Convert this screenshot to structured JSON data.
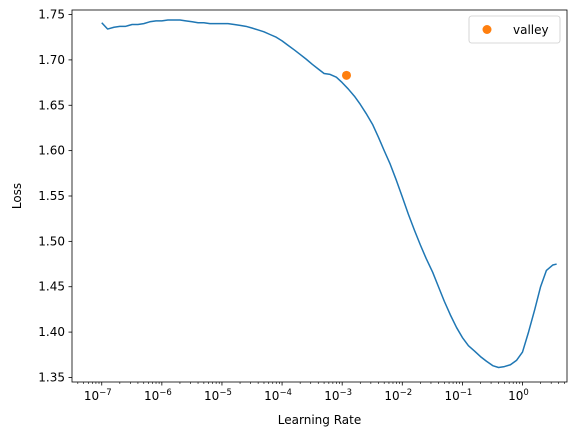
{
  "chart_data": {
    "type": "line",
    "title": "",
    "xlabel": "Learning Rate",
    "ylabel": "Loss",
    "xscale": "log",
    "xlim": [
      3.2e-08,
      5.5
    ],
    "ylim": [
      1.345,
      1.755
    ],
    "x_ticks": [
      {
        "value": 1e-07,
        "base": "10",
        "exp": "−7"
      },
      {
        "value": 1e-06,
        "base": "10",
        "exp": "−6"
      },
      {
        "value": 1e-05,
        "base": "10",
        "exp": "−5"
      },
      {
        "value": 0.0001,
        "base": "10",
        "exp": "−4"
      },
      {
        "value": 0.001,
        "base": "10",
        "exp": "−3"
      },
      {
        "value": 0.01,
        "base": "10",
        "exp": "−2"
      },
      {
        "value": 0.1,
        "base": "10",
        "exp": "−1"
      },
      {
        "value": 1,
        "base": "10",
        "exp": "0"
      }
    ],
    "y_ticks": [
      {
        "value": 1.35,
        "label": "1.35"
      },
      {
        "value": 1.4,
        "label": "1.40"
      },
      {
        "value": 1.45,
        "label": "1.45"
      },
      {
        "value": 1.5,
        "label": "1.50"
      },
      {
        "value": 1.55,
        "label": "1.55"
      },
      {
        "value": 1.6,
        "label": "1.60"
      },
      {
        "value": 1.65,
        "label": "1.65"
      },
      {
        "value": 1.7,
        "label": "1.70"
      },
      {
        "value": 1.75,
        "label": "1.75"
      }
    ],
    "grid": false,
    "legend": {
      "placement": "top-right"
    },
    "series": [
      {
        "kind": "line",
        "color": "#1f77b4",
        "x": [
          1e-07,
          1.25e-07,
          1.6e-07,
          2e-07,
          2.5e-07,
          3.2e-07,
          4e-07,
          5e-07,
          6.3e-07,
          8e-07,
          1e-06,
          1.26e-06,
          1.6e-06,
          2e-06,
          2.5e-06,
          3.2e-06,
          4e-06,
          5e-06,
          6.3e-06,
          8e-06,
          1e-05,
          1.26e-05,
          1.6e-05,
          2e-05,
          2.5e-05,
          3.2e-05,
          4e-05,
          5e-05,
          6.3e-05,
          8e-05,
          0.0001,
          0.000126,
          0.00016,
          0.0002,
          0.00025,
          0.00032,
          0.0004,
          0.0005,
          0.00063,
          0.0008,
          0.001,
          0.00126,
          0.0016,
          0.002,
          0.0025,
          0.0032,
          0.004,
          0.005,
          0.0063,
          0.008,
          0.01,
          0.0126,
          0.016,
          0.02,
          0.025,
          0.032,
          0.04,
          0.05,
          0.063,
          0.08,
          0.1,
          0.126,
          0.16,
          0.2,
          0.25,
          0.32,
          0.4,
          0.5,
          0.63,
          0.8,
          1.0,
          1.26,
          1.6,
          2.0,
          2.5,
          3.2,
          3.7
        ],
        "y": [
          1.741,
          1.734,
          1.736,
          1.737,
          1.737,
          1.739,
          1.739,
          1.74,
          1.742,
          1.743,
          1.743,
          1.744,
          1.744,
          1.744,
          1.743,
          1.742,
          1.741,
          1.741,
          1.74,
          1.74,
          1.74,
          1.74,
          1.739,
          1.738,
          1.737,
          1.735,
          1.733,
          1.731,
          1.728,
          1.725,
          1.721,
          1.716,
          1.711,
          1.706,
          1.701,
          1.695,
          1.69,
          1.685,
          1.684,
          1.681,
          1.675,
          1.668,
          1.66,
          1.651,
          1.641,
          1.629,
          1.615,
          1.6,
          1.585,
          1.567,
          1.549,
          1.53,
          1.512,
          1.496,
          1.481,
          1.466,
          1.45,
          1.434,
          1.419,
          1.405,
          1.394,
          1.385,
          1.379,
          1.373,
          1.368,
          1.363,
          1.361,
          1.362,
          1.364,
          1.369,
          1.378,
          1.4,
          1.425,
          1.45,
          1.468,
          1.474,
          1.475
        ]
      },
      {
        "kind": "marker",
        "name": "valley",
        "color": "#ff7f0e",
        "x": [
          0.00118
        ],
        "y": [
          1.683
        ]
      }
    ]
  }
}
